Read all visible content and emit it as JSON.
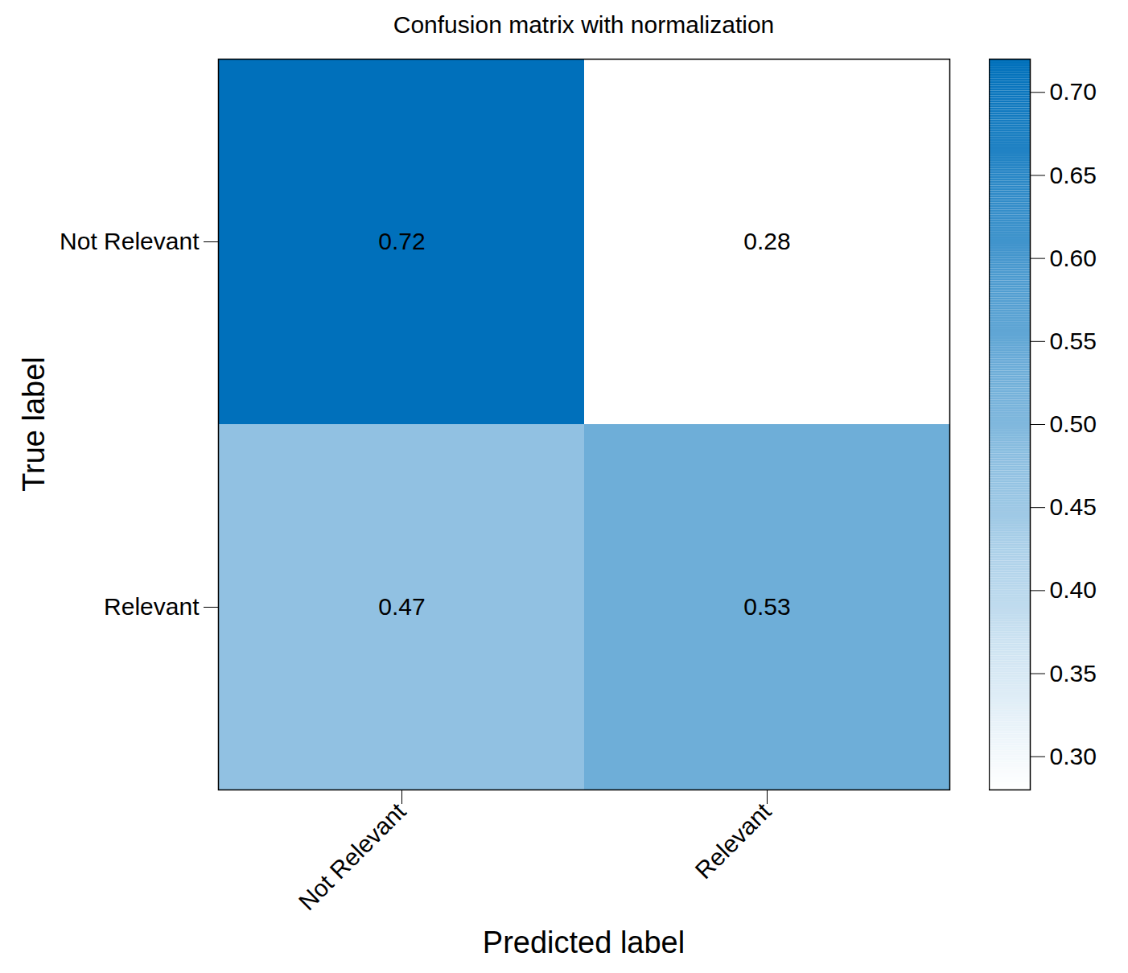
{
  "chart_data": {
    "type": "heatmap",
    "title": "Confusion matrix with normalization",
    "x_label": "Predicted label",
    "y_label": "True label",
    "x_categories": [
      "Not Relevant",
      "Relevant"
    ],
    "y_categories": [
      "Not Relevant",
      "Relevant"
    ],
    "cells": [
      [
        0.72,
        0.28
      ],
      [
        0.47,
        0.53
      ]
    ],
    "data_labels": true,
    "colorbar_range": [
      0.28,
      0.72
    ],
    "colorbar_ticks": [
      {
        "value": 0.3,
        "label": "0.30"
      },
      0.35,
      {
        "value": 0.4,
        "label": "0.40"
      },
      0.45,
      {
        "value": 0.5,
        "label": "0.50"
      },
      0.55,
      {
        "value": 0.6,
        "label": "0.60"
      },
      0.65,
      {
        "value": 0.7,
        "label": "0.70"
      }
    ]
  }
}
